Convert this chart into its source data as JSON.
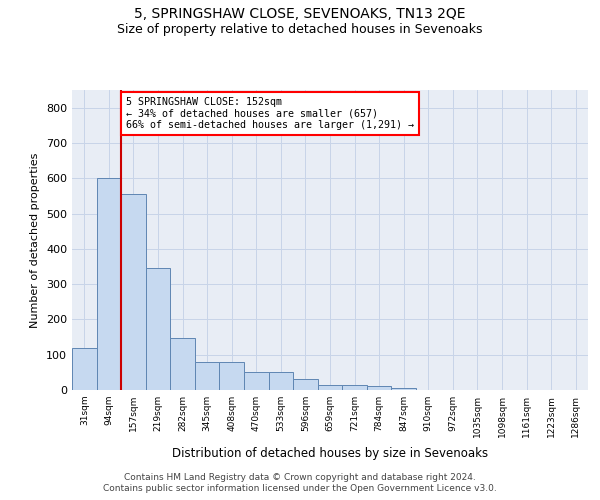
{
  "title": "5, SPRINGSHAW CLOSE, SEVENOAKS, TN13 2QE",
  "subtitle": "Size of property relative to detached houses in Sevenoaks",
  "xlabel": "Distribution of detached houses by size in Sevenoaks",
  "ylabel": "Number of detached properties",
  "categories": [
    "31sqm",
    "94sqm",
    "157sqm",
    "219sqm",
    "282sqm",
    "345sqm",
    "408sqm",
    "470sqm",
    "533sqm",
    "596sqm",
    "659sqm",
    "721sqm",
    "784sqm",
    "847sqm",
    "910sqm",
    "972sqm",
    "1035sqm",
    "1098sqm",
    "1161sqm",
    "1223sqm",
    "1286sqm"
  ],
  "bar_heights": [
    120,
    600,
    555,
    345,
    148,
    78,
    78,
    52,
    52,
    30,
    15,
    15,
    12,
    5,
    0,
    0,
    0,
    0,
    0,
    0,
    0
  ],
  "bar_color": "#c6d9f0",
  "bar_edge_color": "#5f86b3",
  "annotation_line1": "5 SPRINGSHAW CLOSE: 152sqm",
  "annotation_line2": "← 34% of detached houses are smaller (657)",
  "annotation_line3": "66% of semi-detached houses are larger (1,291) →",
  "annotation_box_color": "white",
  "annotation_box_edge_color": "red",
  "red_line_color": "#cc0000",
  "ylim": [
    0,
    850
  ],
  "yticks": [
    0,
    100,
    200,
    300,
    400,
    500,
    600,
    700,
    800
  ],
  "grid_color": "#c8d4e8",
  "background_color": "#e8edf5",
  "footer_line1": "Contains HM Land Registry data © Crown copyright and database right 2024.",
  "footer_line2": "Contains public sector information licensed under the Open Government Licence v3.0.",
  "title_fontsize": 10,
  "subtitle_fontsize": 9
}
